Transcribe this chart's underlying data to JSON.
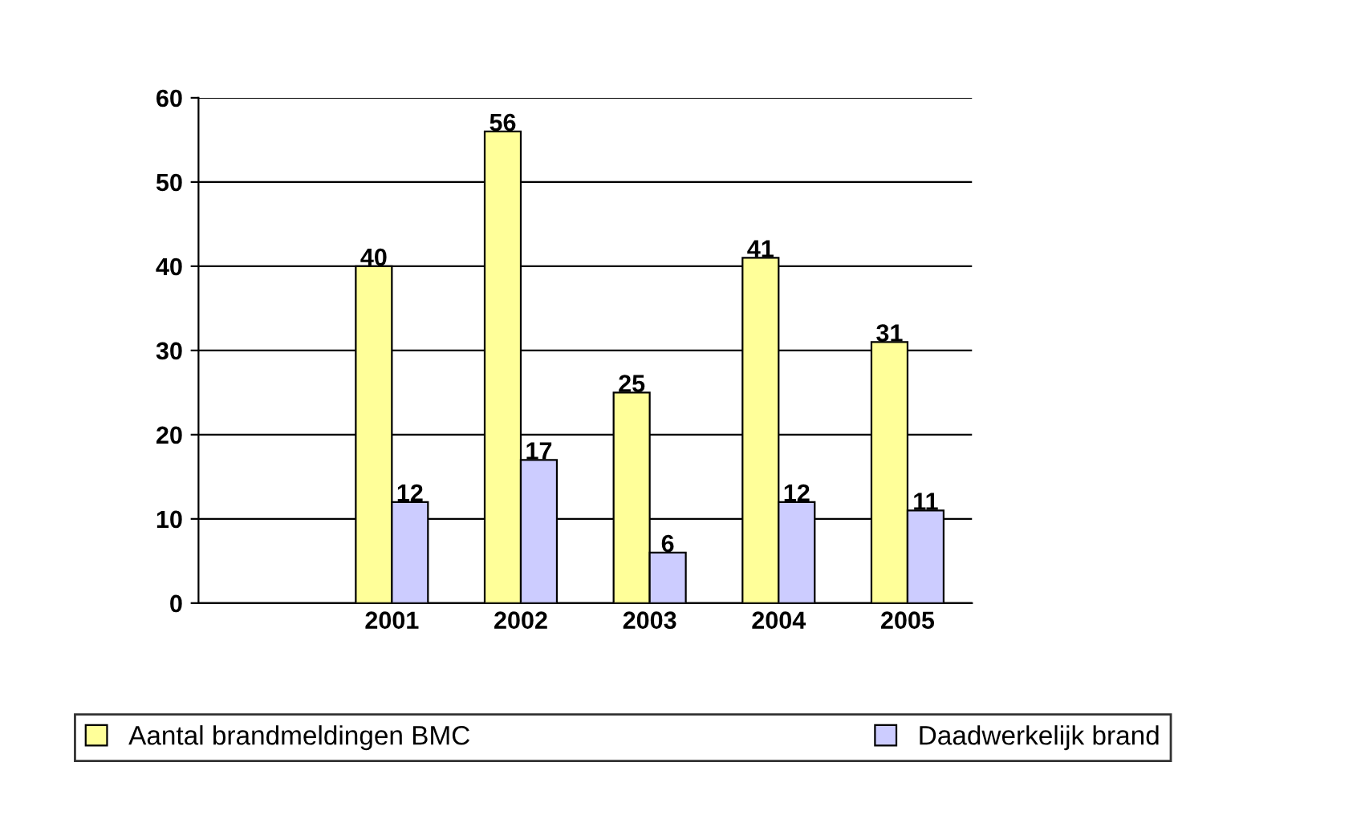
{
  "chart_data": {
    "type": "bar",
    "categories": [
      null,
      "2001",
      "2002",
      "2003",
      "2004",
      "2005"
    ],
    "series": [
      {
        "name": "Aantal brandmeldingen BMC",
        "color": "#ffff99",
        "values": [
          null,
          40,
          56,
          25,
          41,
          31
        ]
      },
      {
        "name": "Daadwerkelijk brand",
        "color": "#ccccff",
        "values": [
          null,
          12,
          17,
          6,
          12,
          11
        ]
      }
    ],
    "ylim": [
      0,
      60
    ],
    "yticks": [
      0,
      10,
      20,
      30,
      40,
      50,
      60
    ],
    "grid": "y",
    "legend": "bottom",
    "data_labels": true
  }
}
